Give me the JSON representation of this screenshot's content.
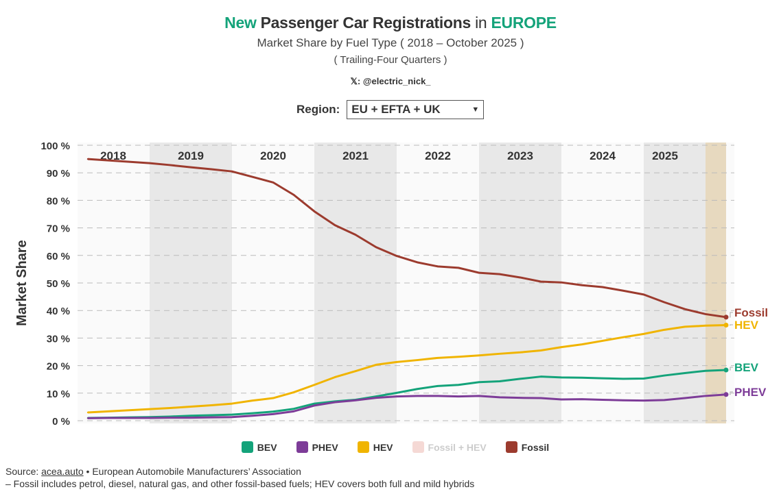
{
  "header": {
    "title_part1": "New",
    "title_part2": "Passenger Car Registrations",
    "title_part3": "in",
    "title_part4": "EUROPE",
    "subtitle": "Market Share by Fuel Type ( 2018 – October 2025 )",
    "subtitle2": "( Trailing-Four Quarters )",
    "handle": "𝕏: @electric_nick_"
  },
  "region": {
    "label": "Region:",
    "selected": "EU + EFTA + UK"
  },
  "chart_data": {
    "type": "line",
    "title": "New Passenger Car Registrations in EUROPE",
    "ylabel": "Market Share",
    "ylim": [
      0,
      100
    ],
    "yticks": [
      "0 %",
      "10 %",
      "20 %",
      "30 %",
      "40 %",
      "50 %",
      "60 %",
      "70 %",
      "80 %",
      "90 %",
      "100 %"
    ],
    "year_labels": [
      "2018",
      "2019",
      "2020",
      "2021",
      "2022",
      "2023",
      "2024",
      "2025"
    ],
    "grid": true,
    "x": [
      "2018 Q1",
      "2018 Q2",
      "2018 Q3",
      "2018 Q4",
      "2019 Q1",
      "2019 Q2",
      "2019 Q3",
      "2019 Q4",
      "2020 Q1",
      "2020 Q2",
      "2020 Q3",
      "2020 Q4",
      "2021 Q1",
      "2021 Q2",
      "2021 Q3",
      "2021 Q4",
      "2022 Q1",
      "2022 Q2",
      "2022 Q3",
      "2022 Q4",
      "2023 Q1",
      "2023 Q2",
      "2023 Q3",
      "2023 Q4",
      "2024 Q1",
      "2024 Q2",
      "2024 Q3",
      "2024 Q4",
      "2025 Q1",
      "2025 Q2",
      "2025 Q3",
      "2025 Oct"
    ],
    "series": [
      {
        "name": "Fossil",
        "color": "#9c3b2e",
        "values": [
          95,
          94.5,
          94,
          93.5,
          92.8,
          92,
          91.3,
          90.5,
          88.5,
          86.5,
          82,
          76,
          71,
          67.5,
          63,
          59.8,
          57.5,
          56,
          55.5,
          53.7,
          53.2,
          52,
          50.5,
          50.2,
          49.2,
          48.5,
          47.2,
          45.8,
          43,
          40.5,
          38.7,
          37.6
        ]
      },
      {
        "name": "HEV",
        "color": "#f0b400",
        "values": [
          3,
          3.4,
          3.8,
          4.2,
          4.6,
          5.1,
          5.6,
          6.2,
          7.3,
          8.2,
          10.3,
          13,
          15.8,
          18,
          20.3,
          21.3,
          22,
          22.8,
          23.2,
          23.7,
          24.3,
          24.8,
          25.5,
          26.7,
          27.7,
          29,
          30.3,
          31.5,
          33,
          34.1,
          34.5,
          34.7
        ]
      },
      {
        "name": "BEV",
        "color": "#14a37a",
        "values": [
          1,
          1.1,
          1.2,
          1.3,
          1.5,
          1.8,
          2,
          2.2,
          2.7,
          3.3,
          4.3,
          6.2,
          7,
          7.6,
          8.8,
          10.1,
          11.5,
          12.6,
          13,
          14,
          14.3,
          15.2,
          16,
          15.7,
          15.6,
          15.4,
          15.2,
          15.3,
          16.4,
          17.3,
          18.1,
          18.4
        ]
      },
      {
        "name": "PHEV",
        "color": "#7d3c98",
        "values": [
          0.9,
          1,
          1,
          1,
          1.1,
          1.1,
          1.2,
          1.3,
          1.8,
          2.4,
          3.4,
          5.5,
          6.7,
          7.4,
          8.3,
          8.8,
          9,
          9,
          8.8,
          9,
          8.5,
          8.3,
          8.2,
          7.7,
          7.8,
          7.6,
          7.4,
          7.3,
          7.5,
          8.2,
          9,
          9.5
        ]
      }
    ],
    "legend": [
      {
        "name": "BEV",
        "color": "#14a37a",
        "active": true
      },
      {
        "name": "PHEV",
        "color": "#7d3c98",
        "active": true
      },
      {
        "name": "HEV",
        "color": "#f0b400",
        "active": true
      },
      {
        "name": "Fossil + HEV",
        "color": "#f5d9d5",
        "active": false
      },
      {
        "name": "Fossil",
        "color": "#9c3b2e",
        "active": true
      }
    ],
    "legend_placement": "bottom"
  },
  "footer": {
    "source_prefix": "Source: ",
    "source_link": "acea.auto",
    "source_suffix": " • European Automobile Manufacturers’ Association",
    "note": "– Fossil includes petrol, diesel, natural gas, and other fossil-based fuels; HEV covers both full and mild hybrids"
  }
}
